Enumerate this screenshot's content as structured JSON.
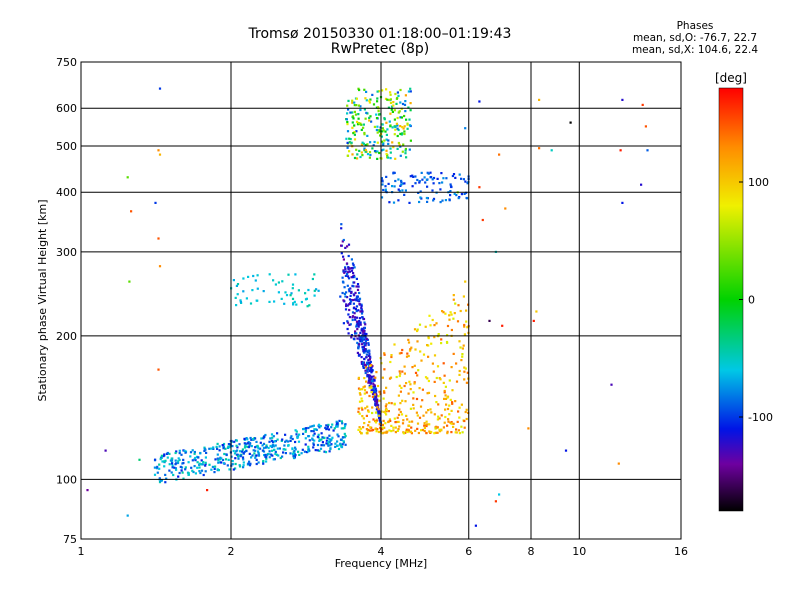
{
  "chart_data": {
    "type": "scatter",
    "title": "Tromsø 20150330 01:18:00–01:19:43",
    "subtitle": "RwPretec (8p)",
    "xlabel": "Frequency [MHz]",
    "ylabel": "Stationary phase Virtual Height [km]",
    "x_scale": "log",
    "y_scale": "log",
    "xlim": [
      1,
      16
    ],
    "ylim": [
      75,
      750
    ],
    "x_ticks": [
      1,
      2,
      4,
      6,
      8,
      10,
      16
    ],
    "y_ticks": [
      75,
      100,
      200,
      300,
      400,
      500,
      600,
      750
    ],
    "x_gridlines": [
      2,
      4,
      6,
      8,
      10
    ],
    "y_gridlines": [
      100,
      200,
      300,
      400,
      500,
      600
    ],
    "grid": true,
    "legend": {
      "title": "Phases",
      "lines": [
        "mean, sd,O: -76.7, 22.7",
        "mean, sd,X: 104.6, 22.4"
      ],
      "placement": "top-right"
    },
    "colorbar": {
      "label": "[deg]",
      "range": [
        -180,
        180
      ],
      "ticks": [
        100,
        0,
        -100
      ],
      "colormap": "rainbow (black-purple-blue-cyan-green-yellow-orange-red)"
    },
    "clusters": [
      {
        "name": "E-F1 low-height band",
        "x_range": [
          1.4,
          3.4
        ],
        "y_range": [
          105,
          140
        ],
        "phase_range": [
          -110,
          -40
        ]
      },
      {
        "name": "F2 O-trace",
        "x_range": [
          3.2,
          4.0
        ],
        "y_range": [
          130,
          350
        ],
        "phase_range": [
          -140,
          -80
        ]
      },
      {
        "name": "F2 X-trace",
        "x_range": [
          3.6,
          6.0
        ],
        "y_range": [
          125,
          260
        ],
        "phase_range": [
          70,
          150
        ]
      },
      {
        "name": "Spread F echoes",
        "x_range": [
          3.4,
          4.6
        ],
        "y_range": [
          470,
          660
        ],
        "phase_range": [
          -100,
          120
        ]
      },
      {
        "name": "Oblique trace",
        "x_range": [
          4.0,
          6.0
        ],
        "y_range": [
          380,
          440
        ],
        "phase_range": [
          -110,
          -70
        ]
      },
      {
        "name": "Lower spread trace",
        "x_range": [
          2.0,
          3.0
        ],
        "y_range": [
          230,
          270
        ],
        "phase_range": [
          -70,
          -40
        ]
      }
    ],
    "isolated_points": [
      {
        "x": 1.44,
        "y": 660,
        "phase": -100
      },
      {
        "x": 1.43,
        "y": 490,
        "phase": 130
      },
      {
        "x": 1.44,
        "y": 480,
        "phase": 110
      },
      {
        "x": 1.24,
        "y": 430,
        "phase": 30
      },
      {
        "x": 1.26,
        "y": 365,
        "phase": 150
      },
      {
        "x": 1.41,
        "y": 380,
        "phase": -100
      },
      {
        "x": 1.43,
        "y": 320,
        "phase": 150
      },
      {
        "x": 1.44,
        "y": 280,
        "phase": 130
      },
      {
        "x": 1.25,
        "y": 260,
        "phase": 30
      },
      {
        "x": 1.43,
        "y": 170,
        "phase": 150
      },
      {
        "x": 1.12,
        "y": 115,
        "phase": -130
      },
      {
        "x": 1.03,
        "y": 95,
        "phase": -140
      },
      {
        "x": 1.24,
        "y": 84,
        "phase": -70
      },
      {
        "x": 1.31,
        "y": 110,
        "phase": -30
      },
      {
        "x": 1.79,
        "y": 95,
        "phase": 170
      },
      {
        "x": 6.3,
        "y": 620,
        "phase": -110
      },
      {
        "x": 5.9,
        "y": 545,
        "phase": -80
      },
      {
        "x": 6.3,
        "y": 410,
        "phase": 160
      },
      {
        "x": 7.1,
        "y": 370,
        "phase": 130
      },
      {
        "x": 6.9,
        "y": 480,
        "phase": 140
      },
      {
        "x": 8.3,
        "y": 625,
        "phase": 110
      },
      {
        "x": 8.3,
        "y": 495,
        "phase": 140
      },
      {
        "x": 8.8,
        "y": 490,
        "phase": -50
      },
      {
        "x": 9.6,
        "y": 560,
        "phase": -180
      },
      {
        "x": 12.2,
        "y": 625,
        "phase": -120
      },
      {
        "x": 13.4,
        "y": 610,
        "phase": 160
      },
      {
        "x": 13.6,
        "y": 550,
        "phase": 150
      },
      {
        "x": 13.7,
        "y": 490,
        "phase": -90
      },
      {
        "x": 13.3,
        "y": 415,
        "phase": -120
      },
      {
        "x": 12.2,
        "y": 380,
        "phase": -110
      },
      {
        "x": 12.1,
        "y": 490,
        "phase": 170
      },
      {
        "x": 6.4,
        "y": 350,
        "phase": 160
      },
      {
        "x": 6.6,
        "y": 215,
        "phase": -160
      },
      {
        "x": 7.0,
        "y": 210,
        "phase": 170
      },
      {
        "x": 8.2,
        "y": 225,
        "phase": 100
      },
      {
        "x": 8.1,
        "y": 215,
        "phase": 170
      },
      {
        "x": 6.8,
        "y": 300,
        "phase": -50
      },
      {
        "x": 7.9,
        "y": 128,
        "phase": 130
      },
      {
        "x": 9.4,
        "y": 115,
        "phase": -110
      },
      {
        "x": 11.6,
        "y": 158,
        "phase": -130
      },
      {
        "x": 12.0,
        "y": 108,
        "phase": 130
      },
      {
        "x": 6.2,
        "y": 80,
        "phase": -110
      },
      {
        "x": 6.9,
        "y": 93,
        "phase": -60
      },
      {
        "x": 6.8,
        "y": 90,
        "phase": 160
      },
      {
        "x": 5.7,
        "y": 400,
        "phase": 40
      },
      {
        "x": 5.9,
        "y": 260,
        "phase": 100
      }
    ]
  }
}
